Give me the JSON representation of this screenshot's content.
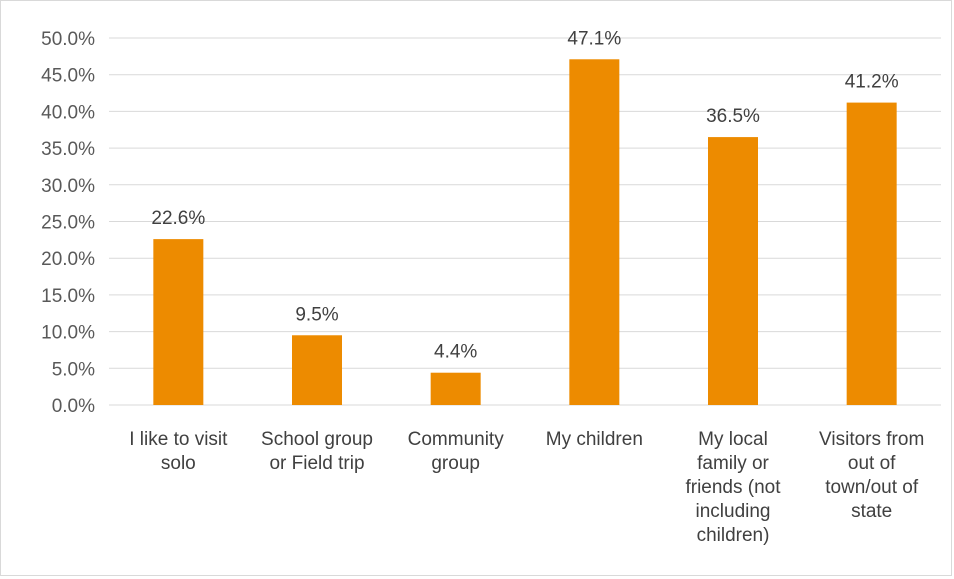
{
  "chart_data": {
    "type": "bar",
    "categories": [
      [
        "I like to visit",
        "solo"
      ],
      [
        "School group",
        "or Field trip"
      ],
      [
        "Community",
        "group"
      ],
      [
        "My children"
      ],
      [
        "My local",
        "family or",
        "friends (not",
        "including",
        "children)"
      ],
      [
        "Visitors from",
        "out of",
        "town/out of",
        "state"
      ]
    ],
    "values": [
      22.6,
      9.5,
      4.4,
      47.1,
      36.5,
      41.2
    ],
    "data_labels": [
      "22.6%",
      "9.5%",
      "4.4%",
      "47.1%",
      "36.5%",
      "41.2%"
    ],
    "yticks": [
      0,
      5,
      10,
      15,
      20,
      25,
      30,
      35,
      40,
      45,
      50
    ],
    "ytick_labels": [
      "0.0%",
      "5.0%",
      "10.0%",
      "15.0%",
      "20.0%",
      "25.0%",
      "30.0%",
      "35.0%",
      "40.0%",
      "45.0%",
      "50.0%"
    ],
    "ylim": [
      0,
      50
    ],
    "grid": true,
    "bar_color": "#ED8B00",
    "title": "",
    "xlabel": "",
    "ylabel": ""
  }
}
